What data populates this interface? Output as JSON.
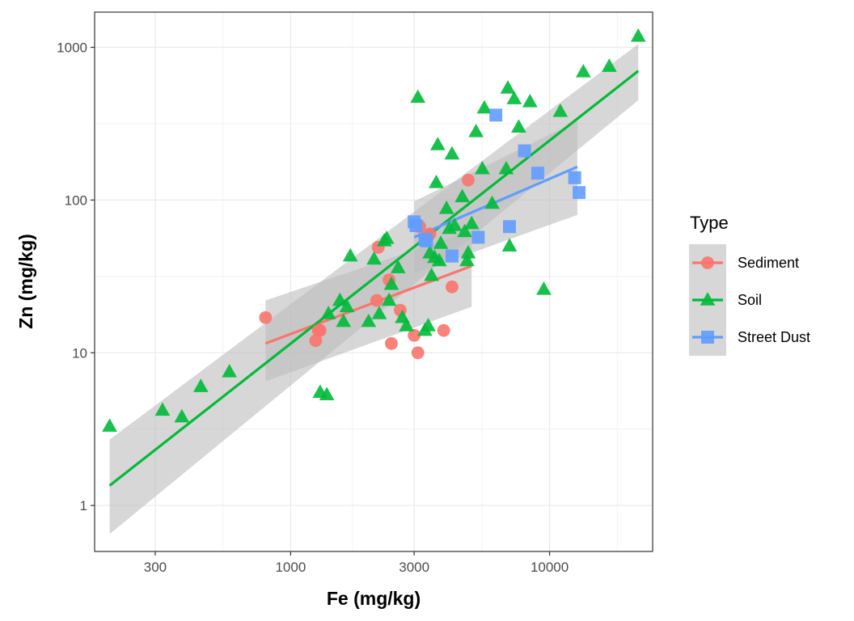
{
  "chart_data": {
    "type": "scatter",
    "xlabel": "Fe (mg/kg)",
    "ylabel": "Zn (mg/kg)",
    "x_scale": "log10",
    "y_scale": "log10",
    "xlim": [
      175,
      25000
    ],
    "ylim": [
      0.5,
      1700
    ],
    "x_ticks": [
      300,
      1000,
      3000,
      10000
    ],
    "x_tick_labels": [
      "300",
      "1000",
      "3000",
      "10000"
    ],
    "y_ticks": [
      1,
      10,
      100,
      1000
    ],
    "y_tick_labels": [
      "1",
      "10",
      "100",
      "1000"
    ],
    "grid": true,
    "legend": {
      "title": "Type",
      "position": "right",
      "entries": [
        "Sediment",
        "Soil",
        "Street Dust"
      ]
    },
    "colors": {
      "Sediment": "#F8766D",
      "Soil": "#00BA38",
      "Street Dust": "#619CFF",
      "band": "#bdbdbd"
    },
    "series": [
      {
        "name": "Sediment",
        "marker": "circle",
        "points": [
          [
            800,
            17
          ],
          [
            1250,
            12
          ],
          [
            1280,
            14
          ],
          [
            1300,
            14
          ],
          [
            2150,
            22
          ],
          [
            2180,
            49
          ],
          [
            2400,
            30
          ],
          [
            2450,
            11.5
          ],
          [
            2650,
            19
          ],
          [
            3000,
            13
          ],
          [
            3100,
            10
          ],
          [
            3150,
            67
          ],
          [
            3450,
            60
          ],
          [
            3900,
            14
          ],
          [
            4200,
            27
          ],
          [
            4850,
            135
          ]
        ],
        "fit": {
          "x": [
            800,
            5000
          ],
          "y": [
            11.5,
            37
          ],
          "lower": [
            6.5,
            20
          ],
          "upper": [
            22,
            63
          ]
        }
      },
      {
        "name": "Soil",
        "marker": "triangle",
        "points": [
          [
            200,
            3.3
          ],
          [
            320,
            4.2
          ],
          [
            380,
            3.8
          ],
          [
            450,
            6
          ],
          [
            580,
            7.5
          ],
          [
            1300,
            5.5
          ],
          [
            1380,
            5.3
          ],
          [
            1400,
            18
          ],
          [
            1550,
            22
          ],
          [
            1600,
            16
          ],
          [
            1650,
            20
          ],
          [
            1700,
            43
          ],
          [
            2000,
            16
          ],
          [
            2100,
            41
          ],
          [
            2200,
            18
          ],
          [
            2300,
            54
          ],
          [
            2350,
            56
          ],
          [
            2400,
            22
          ],
          [
            2450,
            28
          ],
          [
            2600,
            36
          ],
          [
            2700,
            17
          ],
          [
            2800,
            15
          ],
          [
            3100,
            470
          ],
          [
            3300,
            14
          ],
          [
            3400,
            15
          ],
          [
            3450,
            45
          ],
          [
            3500,
            32
          ],
          [
            3600,
            42
          ],
          [
            3650,
            130
          ],
          [
            3700,
            230
          ],
          [
            3750,
            40
          ],
          [
            3800,
            52
          ],
          [
            4000,
            88
          ],
          [
            4100,
            65
          ],
          [
            4200,
            200
          ],
          [
            4300,
            68
          ],
          [
            4600,
            105
          ],
          [
            4700,
            62
          ],
          [
            4800,
            40
          ],
          [
            4850,
            45
          ],
          [
            5000,
            70
          ],
          [
            5200,
            280
          ],
          [
            5500,
            160
          ],
          [
            5600,
            400
          ],
          [
            6000,
            95
          ],
          [
            6800,
            160
          ],
          [
            6900,
            540
          ],
          [
            7000,
            50
          ],
          [
            7300,
            460
          ],
          [
            7600,
            300
          ],
          [
            8400,
            440
          ],
          [
            9500,
            26
          ],
          [
            11000,
            380
          ],
          [
            13500,
            690
          ],
          [
            17000,
            750
          ],
          [
            22000,
            1180
          ]
        ],
        "fit": {
          "x": [
            200,
            22000
          ],
          "y": [
            1.35,
            700
          ],
          "lower": [
            0.65,
            450
          ],
          "upper": [
            2.7,
            1050
          ]
        }
      },
      {
        "name": "Street Dust",
        "marker": "square",
        "points": [
          [
            3000,
            72
          ],
          [
            3050,
            68
          ],
          [
            3300,
            55
          ],
          [
            3350,
            54
          ],
          [
            4200,
            43
          ],
          [
            5300,
            57
          ],
          [
            6200,
            360
          ],
          [
            7000,
            67
          ],
          [
            8000,
            210
          ],
          [
            9000,
            150
          ],
          [
            12500,
            140
          ],
          [
            13000,
            112
          ]
        ],
        "fit": {
          "x": [
            3000,
            12800
          ],
          "y": [
            57,
            165
          ],
          "lower": [
            33,
            80
          ],
          "upper": [
            98,
            330
          ]
        }
      }
    ]
  }
}
